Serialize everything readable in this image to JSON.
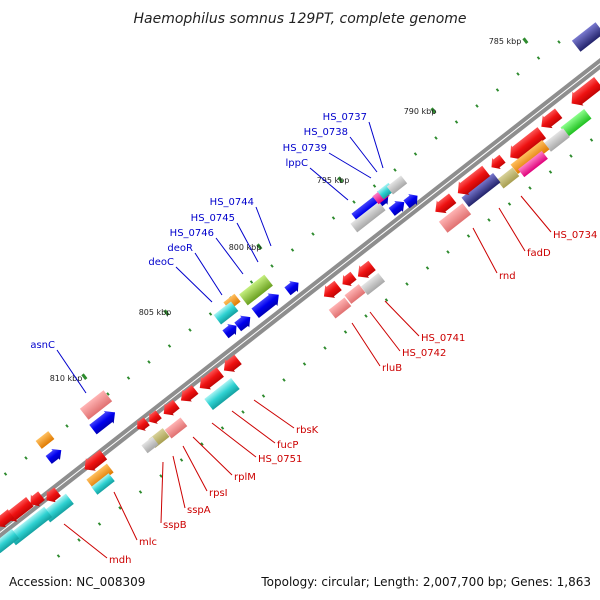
{
  "title": "Haemophilus somnus 129PT, complete genome",
  "footer": {
    "accession": "Accession: NC_008309",
    "summary": "Topology: circular; Length: 2,007,700 bp; Genes: 1,863"
  },
  "colors": {
    "backbone": "#8c8c8c",
    "tick": "#2e8b2e",
    "forward_label": "#0000cc",
    "reverse_label": "#cc0000"
  },
  "ticks": [
    "785 kbp",
    "790 kbp",
    "795 kbp",
    "800 kbp",
    "805 kbp",
    "810 kbp"
  ],
  "forward_labels": [
    "HS_0737",
    "HS_0738",
    "HS_0739",
    "lppC",
    "HS_0744",
    "HS_0745",
    "HS_0746",
    "deoR",
    "deoC",
    "asnC"
  ],
  "reverse_labels": [
    "HS_0734",
    "fadD",
    "rnd",
    "HS_0741",
    "HS_0742",
    "rluB",
    "rbsK",
    "fucP",
    "HS_0751",
    "rplM",
    "rpsI",
    "sspA",
    "sspB",
    "mlc",
    "mdh"
  ]
}
